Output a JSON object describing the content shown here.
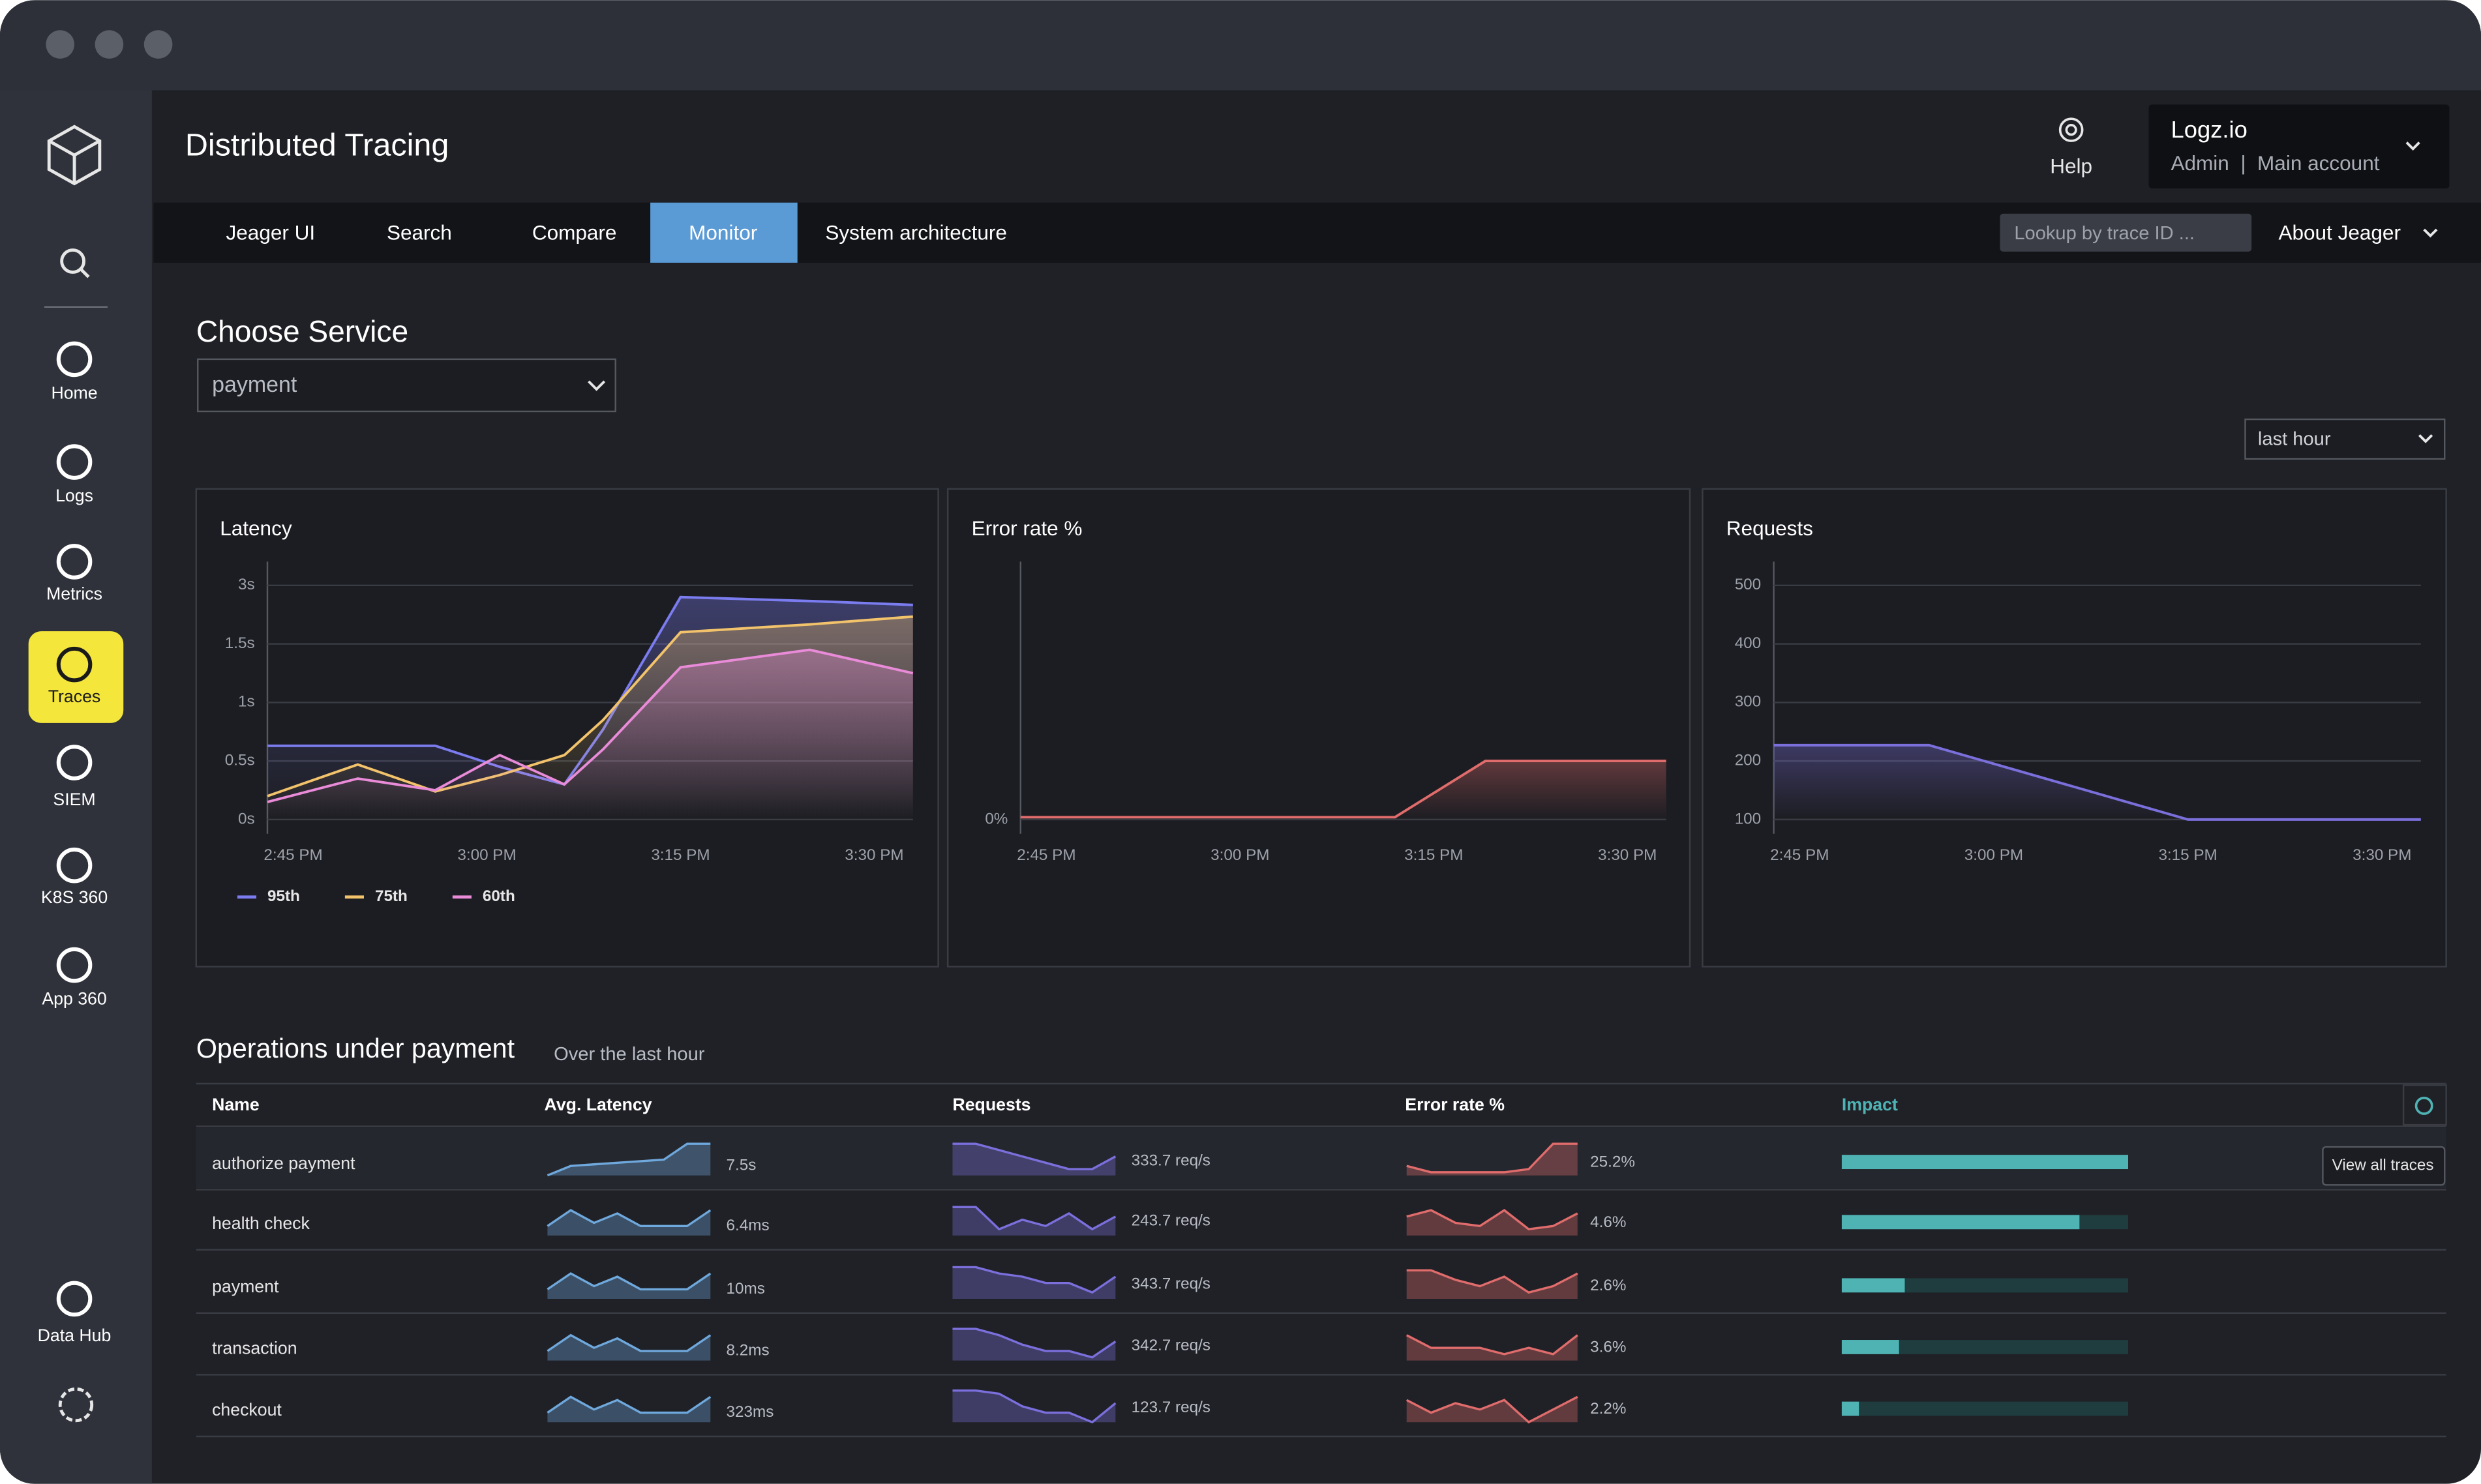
{
  "header": {
    "title": "Distributed Tracing",
    "help": "Help",
    "account": {
      "name": "Logz.io",
      "role": "Admin  |  Main account"
    }
  },
  "sidebar": {
    "items": [
      {
        "label": "Home"
      },
      {
        "label": "Logs"
      },
      {
        "label": "Metrics"
      },
      {
        "label": "Traces"
      },
      {
        "label": "SIEM"
      },
      {
        "label": "K8S 360"
      },
      {
        "label": "App 360"
      },
      {
        "label": "Data Hub"
      }
    ]
  },
  "nav": {
    "tabs": [
      "Jeager UI",
      "Search",
      "Compare",
      "Monitor",
      "System architecture"
    ],
    "active": "Monitor",
    "lookup_placeholder": "Lookup by trace ID ...",
    "about": "About Jeager"
  },
  "service": {
    "heading": "Choose Service",
    "selected": "payment"
  },
  "time_range": "last hour",
  "chart_data": [
    {
      "type": "line",
      "title": "Latency",
      "area": true,
      "grid": true,
      "legend": "bottom-left",
      "yscale": "tick-interpolated",
      "x": [
        "2:43 PM",
        "2:50 PM",
        "2:56 PM",
        "3:01 PM",
        "3:06 PM",
        "3:09 PM",
        "3:15 PM",
        "3:25 PM",
        "3:33 PM"
      ],
      "xlim": [
        "2:43 PM",
        "3:33 PM"
      ],
      "xticks": [
        "2:45 PM",
        "3:00 PM",
        "3:15 PM",
        "3:30 PM"
      ],
      "ylim": [
        0,
        3
      ],
      "yticks": [
        {
          "value": 0,
          "label": "0s"
        },
        {
          "value": 0.5,
          "label": "0.5s"
        },
        {
          "value": 1,
          "label": "1s"
        },
        {
          "value": 1.5,
          "label": "1.5s"
        },
        {
          "value": 3,
          "label": "3s"
        }
      ],
      "series": [
        {
          "name": "95th",
          "color": "#7b7cf0",
          "values": [
            0.63,
            0.63,
            0.63,
            0.45,
            0.3,
            0.77,
            2.7,
            2.6,
            2.5
          ]
        },
        {
          "name": "75th",
          "color": "#f2c36b",
          "values": [
            0.2,
            0.47,
            0.24,
            0.38,
            0.55,
            0.85,
            1.8,
            2.0,
            2.2
          ]
        },
        {
          "name": "60th",
          "color": "#e98bd8",
          "values": [
            0.15,
            0.35,
            0.25,
            0.55,
            0.3,
            0.6,
            1.3,
            1.45,
            1.25
          ]
        }
      ]
    },
    {
      "type": "line",
      "title": "Error rate %",
      "area": true,
      "grid": false,
      "yscale": "linear",
      "x": [
        "2:43 PM",
        "3:12 PM",
        "3:19 PM",
        "3:33 PM"
      ],
      "xlim": [
        "2:43 PM",
        "3:33 PM"
      ],
      "xticks": [
        "2:45 PM",
        "3:00 PM",
        "3:15 PM",
        "3:30 PM"
      ],
      "ylim": [
        0,
        5
      ],
      "yticks": [
        {
          "value": 0,
          "label": "0%"
        }
      ],
      "series": [
        {
          "name": "Error rate %",
          "color": "#e06c6c",
          "values": [
            0.05,
            0.05,
            1.25,
            1.25
          ]
        }
      ]
    },
    {
      "type": "line",
      "title": "Requests",
      "area": true,
      "grid": true,
      "yscale": "linear",
      "x": [
        "2:43 PM",
        "2:55 PM",
        "3:15 PM",
        "3:33 PM"
      ],
      "xlim": [
        "2:43 PM",
        "3:33 PM"
      ],
      "xticks": [
        "2:45 PM",
        "3:00 PM",
        "3:15 PM",
        "3:30 PM"
      ],
      "ylim": [
        100,
        500
      ],
      "yticks": [
        100,
        200,
        300,
        400,
        500
      ],
      "series": [
        {
          "name": "Requests",
          "color": "#7b6fdc",
          "values": [
            227,
            227,
            100,
            100
          ]
        }
      ]
    }
  ],
  "operations": {
    "title": "Operations under payment",
    "subtitle": "Over the last hour",
    "columns": [
      "Name",
      "Avg. Latency",
      "Requests",
      "Error rate %",
      "Impact"
    ],
    "action": "View all traces",
    "spark_ylim": [
      0,
      10
    ],
    "impact_lim": [
      0,
      100
    ],
    "colors": {
      "latency": "#6fa8dc",
      "requests": "#7b6fdc",
      "error": "#e06c6c",
      "impact": "#4fb3b3"
    },
    "rows": [
      {
        "name": "authorize payment",
        "latency": "7.5s",
        "latency_spark": [
          0,
          3,
          3.5,
          4,
          4.5,
          5,
          10,
          10
        ],
        "requests": "333.7 req/s",
        "requests_spark": [
          10,
          10,
          8,
          6,
          4,
          2,
          2,
          6
        ],
        "error_rate": "25.2%",
        "error_spark": [
          3,
          1,
          1,
          1,
          1,
          2,
          10,
          10
        ],
        "impact": 100
      },
      {
        "name": "health check",
        "latency": "6.4ms",
        "latency_spark": [
          3,
          8,
          4,
          7,
          3,
          3,
          3,
          8
        ],
        "requests": "243.7 req/s",
        "requests_spark": [
          9,
          9,
          2,
          5,
          3,
          7,
          2,
          6
        ],
        "error_rate": "4.6%",
        "error_spark": [
          6,
          8,
          4,
          3,
          8,
          2,
          3,
          7
        ],
        "impact": 83
      },
      {
        "name": "payment",
        "latency": "10ms",
        "latency_spark": [
          3,
          8,
          4,
          7,
          3,
          3,
          3,
          8
        ],
        "requests": "343.7 req/s",
        "requests_spark": [
          10,
          10,
          8,
          7,
          5,
          5,
          2,
          7
        ],
        "error_rate": "2.6%",
        "error_spark": [
          9,
          9,
          6,
          4,
          7,
          2,
          4,
          8
        ],
        "impact": 22
      },
      {
        "name": "transaction",
        "latency": "8.2ms",
        "latency_spark": [
          3,
          8,
          4,
          7,
          3,
          3,
          3,
          8
        ],
        "requests": "342.7 req/s",
        "requests_spark": [
          10,
          10,
          8,
          5,
          3,
          3,
          1,
          6
        ],
        "error_rate": "3.6%",
        "error_spark": [
          8,
          4,
          4,
          4,
          2,
          4,
          2,
          8
        ],
        "impact": 20
      },
      {
        "name": "checkout",
        "latency": "323ms",
        "latency_spark": [
          3,
          8,
          4,
          7,
          3,
          3,
          3,
          8
        ],
        "requests": "123.7 req/s",
        "requests_spark": [
          10,
          10,
          9,
          5,
          3,
          3,
          0,
          6
        ],
        "error_rate": "2.2%",
        "error_spark": [
          7,
          3,
          6,
          4,
          7,
          0,
          4,
          8
        ],
        "impact": 6
      }
    ]
  }
}
